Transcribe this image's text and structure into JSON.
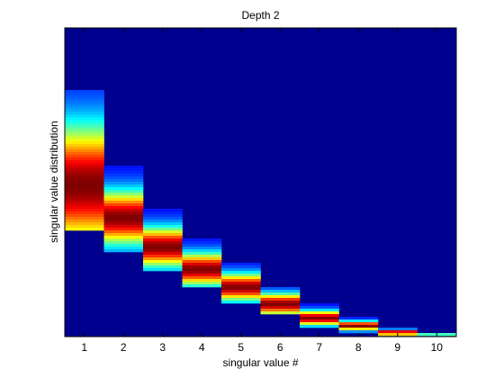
{
  "chart_data": {
    "type": "heatmap",
    "title": "Depth 2",
    "xlabel": "singular value #",
    "ylabel": "singular value distribution",
    "x_ticks": [
      "1",
      "2",
      "3",
      "4",
      "5",
      "6",
      "7",
      "8",
      "9",
      "10"
    ],
    "y_ticks": [],
    "grid": false,
    "legend": "none",
    "colormap": "jet",
    "background_color": "#00008F",
    "columns": [
      {
        "index": 1,
        "center": 0.49,
        "spread": 0.135,
        "support": [
          0.34,
          0.8
        ]
      },
      {
        "index": 2,
        "center": 0.385,
        "spread": 0.06,
        "support": [
          0.27,
          0.57
        ]
      },
      {
        "index": 3,
        "center": 0.29,
        "spread": 0.044,
        "support": [
          0.21,
          0.44
        ]
      },
      {
        "index": 4,
        "center": 0.218,
        "spread": 0.036,
        "support": [
          0.16,
          0.33
        ]
      },
      {
        "index": 5,
        "center": 0.16,
        "spread": 0.03,
        "support": [
          0.11,
          0.24
        ]
      },
      {
        "index": 6,
        "center": 0.105,
        "spread": 0.024,
        "support": [
          0.07,
          0.16
        ]
      },
      {
        "index": 7,
        "center": 0.06,
        "spread": 0.016,
        "support": [
          0.03,
          0.11
        ]
      },
      {
        "index": 8,
        "center": 0.035,
        "spread": 0.01,
        "support": [
          0.01,
          0.07
        ]
      },
      {
        "index": 9,
        "center": 0.013,
        "spread": 0.006,
        "support": [
          0.0,
          0.035
        ]
      },
      {
        "index": 10,
        "center": 0.003,
        "spread": 0.003,
        "support": [
          0.0,
          0.012
        ]
      }
    ]
  }
}
